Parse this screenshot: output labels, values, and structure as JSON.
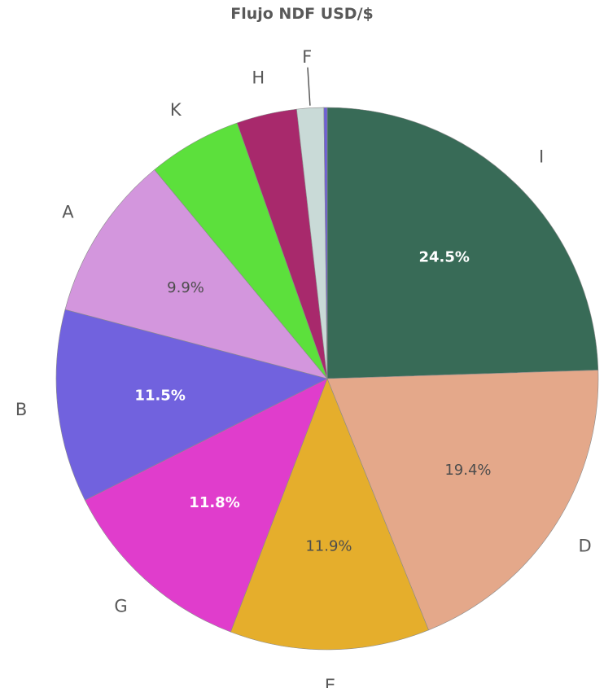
{
  "chart_data": {
    "type": "pie",
    "title": "Flujo NDF USD/$",
    "slices": [
      {
        "label": "I",
        "value": 24.5,
        "value_label": "24.5%",
        "color": "#386b57",
        "label_color": "#ffffff",
        "bold": true
      },
      {
        "label": "D",
        "value": 19.4,
        "value_label": "19.4%",
        "color": "#e4a88a",
        "label_color": "#4d4d4d",
        "bold": false
      },
      {
        "label": "E",
        "value": 11.9,
        "value_label": "11.9%",
        "color": "#e5ae2c",
        "label_color": "#4d4d4d",
        "bold": false
      },
      {
        "label": "G",
        "value": 11.8,
        "value_label": "11.8%",
        "color": "#e03dcc",
        "label_color": "#ffffff",
        "bold": true
      },
      {
        "label": "B",
        "value": 11.5,
        "value_label": "11.5%",
        "color": "#7162de",
        "label_color": "#ffffff",
        "bold": true
      },
      {
        "label": "A",
        "value": 9.9,
        "value_label": "9.9%",
        "color": "#d396dd",
        "label_color": "#4d4d4d",
        "bold": false
      },
      {
        "label": "K",
        "value": 5.6,
        "value_label": "",
        "color": "#5ce03c",
        "label_color": "#4d4d4d",
        "bold": false
      },
      {
        "label": "H",
        "value": 3.6,
        "value_label": "",
        "color": "#a8296c",
        "label_color": "#4d4d4d",
        "bold": false
      },
      {
        "label": "F",
        "value": 1.6,
        "value_label": "",
        "color": "#c9dad7",
        "label_color": "#4d4d4d",
        "bold": false
      },
      {
        "label": "",
        "value": 0.2,
        "value_label": "",
        "color": "#6e5fd6",
        "label_color": "#4d4d4d",
        "bold": false
      }
    ]
  }
}
